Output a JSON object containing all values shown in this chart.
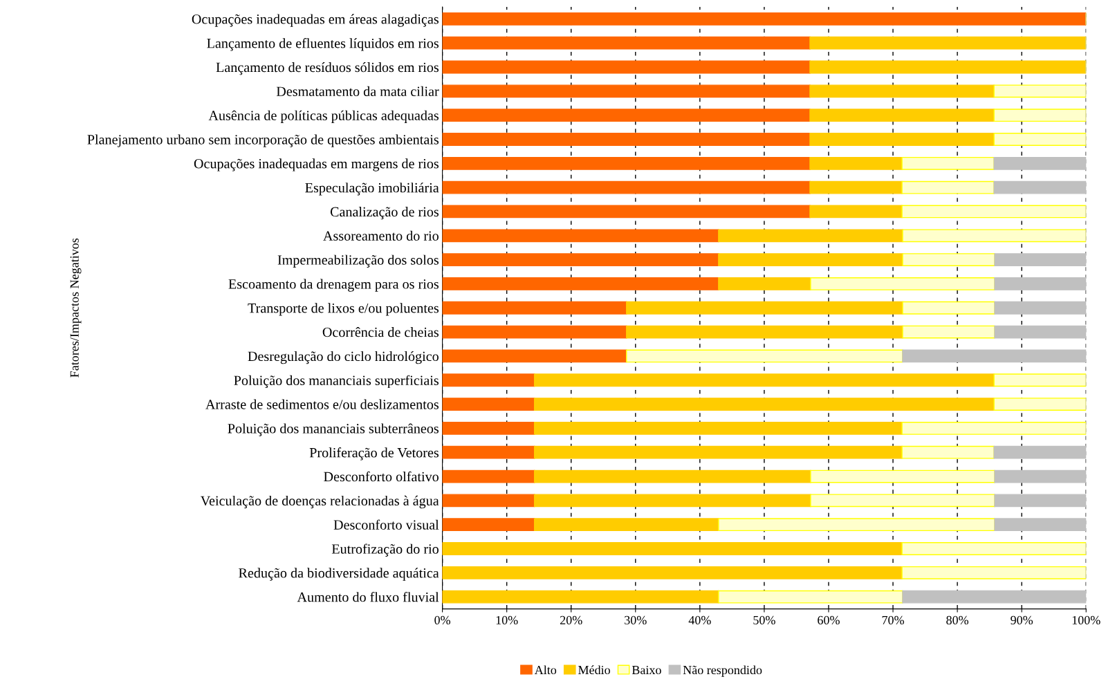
{
  "chart_data": {
    "type": "bar",
    "orientation": "horizontal",
    "stacked": true,
    "ylabel": "Fatores/Impactos Negativos",
    "categories": [
      "Ocupações inadequadas em áreas alagadiças",
      "Lançamento de efluentes líquidos em rios",
      "Lançamento de resíduos sólidos em rios",
      "Desmatamento da mata ciliar",
      "Ausência de políticas públicas adequadas",
      "Planejamento urbano sem incorporação de questões ambientais",
      "Ocupações inadequadas em margens de rios",
      "Especulação imobiliária",
      "Canalização de rios",
      "Assoreamento do rio",
      "Impermeabilização dos solos",
      "Escoamento da drenagem para os rios",
      "Transporte de lixos e/ou poluentes",
      "Ocorrência de cheias",
      "Desregulação do ciclo hidrológico",
      "Poluição dos mananciais superficiais",
      "Arraste de sedimentos e/ou deslizamentos",
      "Poluição dos mananciais subterrâneos",
      "Proliferação de Vetores",
      "Desconforto olfativo",
      "Veiculação de doenças relacionadas à água",
      "Desconforto visual",
      "Eutrofização do rio",
      "Redução da biodiversidade aquática",
      "Aumento do fluxo fluvial"
    ],
    "series": [
      {
        "name": "Alto",
        "color": "#ff6600",
        "values": [
          100,
          57.1,
          57.1,
          57.1,
          57.1,
          57.1,
          57.1,
          57.1,
          57.1,
          42.9,
          42.9,
          42.9,
          28.6,
          28.6,
          28.6,
          14.3,
          14.3,
          14.3,
          14.3,
          14.3,
          14.3,
          14.3,
          0,
          0,
          0
        ]
      },
      {
        "name": "Médio",
        "color": "#ffcc00",
        "values": [
          0,
          42.9,
          42.9,
          28.6,
          28.6,
          28.6,
          14.3,
          14.3,
          14.3,
          28.6,
          28.6,
          14.3,
          42.9,
          42.9,
          0,
          71.4,
          71.4,
          57.1,
          57.1,
          42.9,
          42.9,
          28.6,
          71.4,
          71.4,
          42.9
        ]
      },
      {
        "name": "Baixo",
        "color": "#ffffcc",
        "values": [
          0,
          0,
          0,
          14.3,
          14.3,
          14.3,
          14.3,
          14.3,
          28.6,
          28.5,
          14.3,
          28.6,
          14.3,
          14.3,
          42.9,
          14.3,
          14.3,
          28.6,
          14.3,
          28.6,
          28.6,
          42.9,
          28.6,
          28.6,
          28.6
        ]
      },
      {
        "name": "Não respondido",
        "color": "#c0c0c0",
        "values": [
          0,
          0,
          0,
          0,
          0,
          0,
          14.3,
          14.3,
          0,
          0,
          14.2,
          14.2,
          14.2,
          14.2,
          28.5,
          0,
          0,
          0,
          14.3,
          14.2,
          14.2,
          14.2,
          0,
          0,
          28.5
        ]
      }
    ],
    "xlim": [
      0,
      100
    ],
    "xticks": [
      {
        "value": 0,
        "label": "0%"
      },
      {
        "value": 10,
        "label": "10%"
      },
      {
        "value": 20,
        "label": "20%"
      },
      {
        "value": 30,
        "label": "30%"
      },
      {
        "value": 40,
        "label": "40%"
      },
      {
        "value": 50,
        "label": "50%"
      },
      {
        "value": 60,
        "label": "60%"
      },
      {
        "value": 70,
        "label": "70%"
      },
      {
        "value": 80,
        "label": "80%"
      },
      {
        "value": 90,
        "label": "90%"
      },
      {
        "value": 100,
        "label": "100%"
      }
    ],
    "grid": "x",
    "legend": "bottom"
  }
}
